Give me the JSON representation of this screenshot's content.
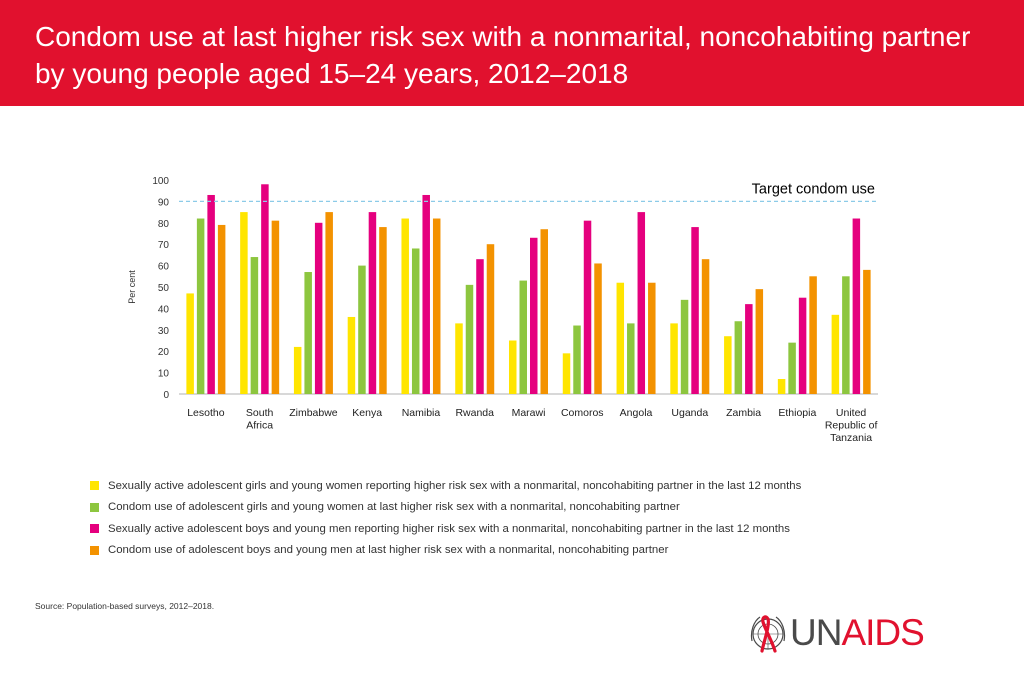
{
  "title": "Condom use at last higher risk sex with a nonmarital, noncohabiting partner by young people aged 15–24 years, 2012–2018",
  "colors": {
    "header": "#e1112e"
  },
  "chart_data": {
    "type": "bar",
    "ylabel": "Per cent",
    "ylim": [
      0,
      100
    ],
    "yticks": [
      0,
      10,
      20,
      30,
      40,
      50,
      60,
      70,
      80,
      90,
      100
    ],
    "grid": false,
    "target": {
      "label": "Target condom use",
      "value": 90
    },
    "categories": [
      "Lesotho",
      "South Africa",
      "Zimbabwe",
      "Kenya",
      "Namibia",
      "Rwanda",
      "Marawi",
      "Comoros",
      "Angola",
      "Uganda",
      "Zambia",
      "Ethiopia",
      "United Republic of Tanzania"
    ],
    "category_lines": [
      [
        "Lesotho"
      ],
      [
        "South",
        "Africa"
      ],
      [
        "Zimbabwe"
      ],
      [
        "Kenya"
      ],
      [
        "Namibia"
      ],
      [
        "Rwanda"
      ],
      [
        "Marawi"
      ],
      [
        "Comoros"
      ],
      [
        "Angola"
      ],
      [
        "Uganda"
      ],
      [
        "Zambia"
      ],
      [
        "Ethiopia"
      ],
      [
        "United",
        "Republic of",
        "Tanzania"
      ]
    ],
    "series": [
      {
        "name": "Sexually active adolescent girls and young women reporting higher risk sex with a nonmarital, noncohabiting partner in the last 12 months",
        "color": "#ffe500",
        "values": [
          47,
          85,
          22,
          36,
          82,
          33,
          25,
          19,
          52,
          33,
          27,
          7,
          37
        ]
      },
      {
        "name": "Condom use of adolescent girls and young women at last higher risk sex with a nonmarital, noncohabiting partner",
        "color": "#8dc63f",
        "values": [
          82,
          64,
          57,
          60,
          68,
          51,
          53,
          32,
          33,
          44,
          34,
          24,
          55
        ]
      },
      {
        "name": "Sexually active adolescent boys and young men reporting higher risk sex with a nonmarital, noncohabiting partner in the last 12 months",
        "color": "#e5007e",
        "values": [
          93,
          98,
          80,
          85,
          93,
          63,
          73,
          81,
          85,
          78,
          42,
          45,
          82
        ]
      },
      {
        "name": "Condom use of adolescent boys and young men at last higher risk sex with a nonmarital, noncohabiting partner",
        "color": "#f39200",
        "values": [
          79,
          81,
          85,
          78,
          82,
          70,
          77,
          61,
          52,
          63,
          49,
          55,
          58
        ]
      }
    ]
  },
  "source": {
    "label": "Source:",
    "text": " Population-based surveys, 2012–2018."
  },
  "logo": {
    "text_un": "UN",
    "text_aids": "AIDS",
    "icon": "red-ribbon-un-emblem-icon"
  }
}
